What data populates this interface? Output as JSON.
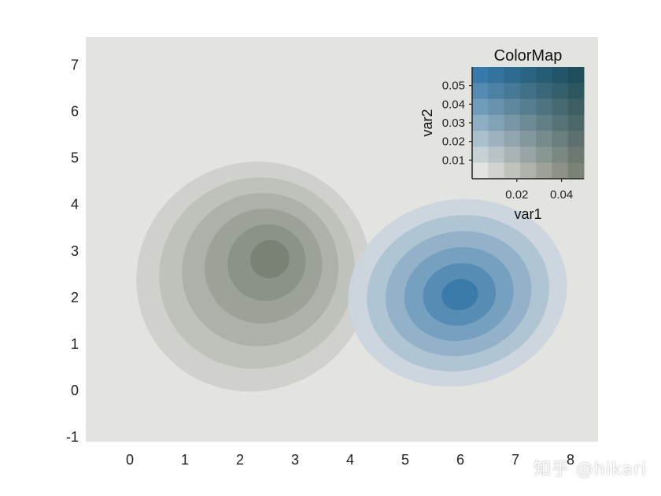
{
  "chart_data": {
    "type": "contour",
    "xlim": [
      -0.8,
      8.5
    ],
    "ylim": [
      -1.1,
      7.6
    ],
    "xticks": [
      0,
      1,
      2,
      3,
      4,
      5,
      6,
      7,
      8
    ],
    "yticks": [
      -1,
      0,
      1,
      2,
      3,
      4,
      5,
      6,
      7
    ],
    "series": [
      {
        "center": [
          2.6,
          2.9
        ],
        "levels": 6,
        "color_low": "#d0d1cc",
        "color_high": "#7a8276"
      },
      {
        "center": [
          6.0,
          2.05
        ],
        "levels": 6,
        "color_low": "#cbd5dd",
        "color_high": "#3779aa"
      }
    ],
    "inset": {
      "title": "ColorMap",
      "xlabel": "var1",
      "ylabel": "var2",
      "xticks": [
        0.02,
        0.04
      ],
      "yticks": [
        0.01,
        0.02,
        0.03,
        0.04,
        0.05
      ],
      "xlim": [
        0,
        0.05
      ],
      "ylim": [
        0,
        0.06
      ],
      "grid_size": 7,
      "corner_colors": {
        "bottom_left": "#e3e3df",
        "bottom_right": "#7a8276",
        "top_left": "#3779aa",
        "top_right": "#1f4d5a"
      }
    }
  },
  "watermark": "知乎 @hikari"
}
